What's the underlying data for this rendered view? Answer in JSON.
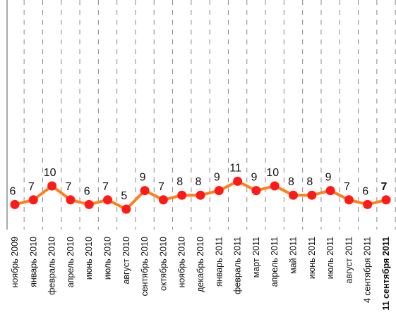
{
  "chart_data": {
    "type": "line",
    "title": "",
    "xlabel": "",
    "ylabel": "",
    "ylim": [
      0,
      50
    ],
    "grid": "vertical dashed",
    "legend": "none",
    "line_color": "#ff7f1a",
    "marker_color": "#ff1a1a",
    "categories": [
      "ноябрь 2009",
      "январь 2010",
      "февраль 2010",
      "апрель 2010",
      "июнь 2010",
      "июль 2010",
      "август 2010",
      "сентябрь 2010",
      "октябрь 2010",
      "ноябрь 2010",
      "декабрь 2010",
      "январь 2011",
      "февраль 2011",
      "март 2011",
      "апрель 2011",
      "май 2011",
      "июнь 2011",
      "июль 2011",
      "август 2011",
      "4 сентября 2011",
      "11 сентября 2011"
    ],
    "series": [
      {
        "values": [
          6,
          7,
          10,
          7,
          6,
          7,
          5,
          9,
          7,
          8,
          8,
          9,
          11,
          9,
          10,
          8,
          8,
          9,
          7,
          6,
          7
        ]
      }
    ],
    "highlighted_category": "11 сентября 2011"
  }
}
